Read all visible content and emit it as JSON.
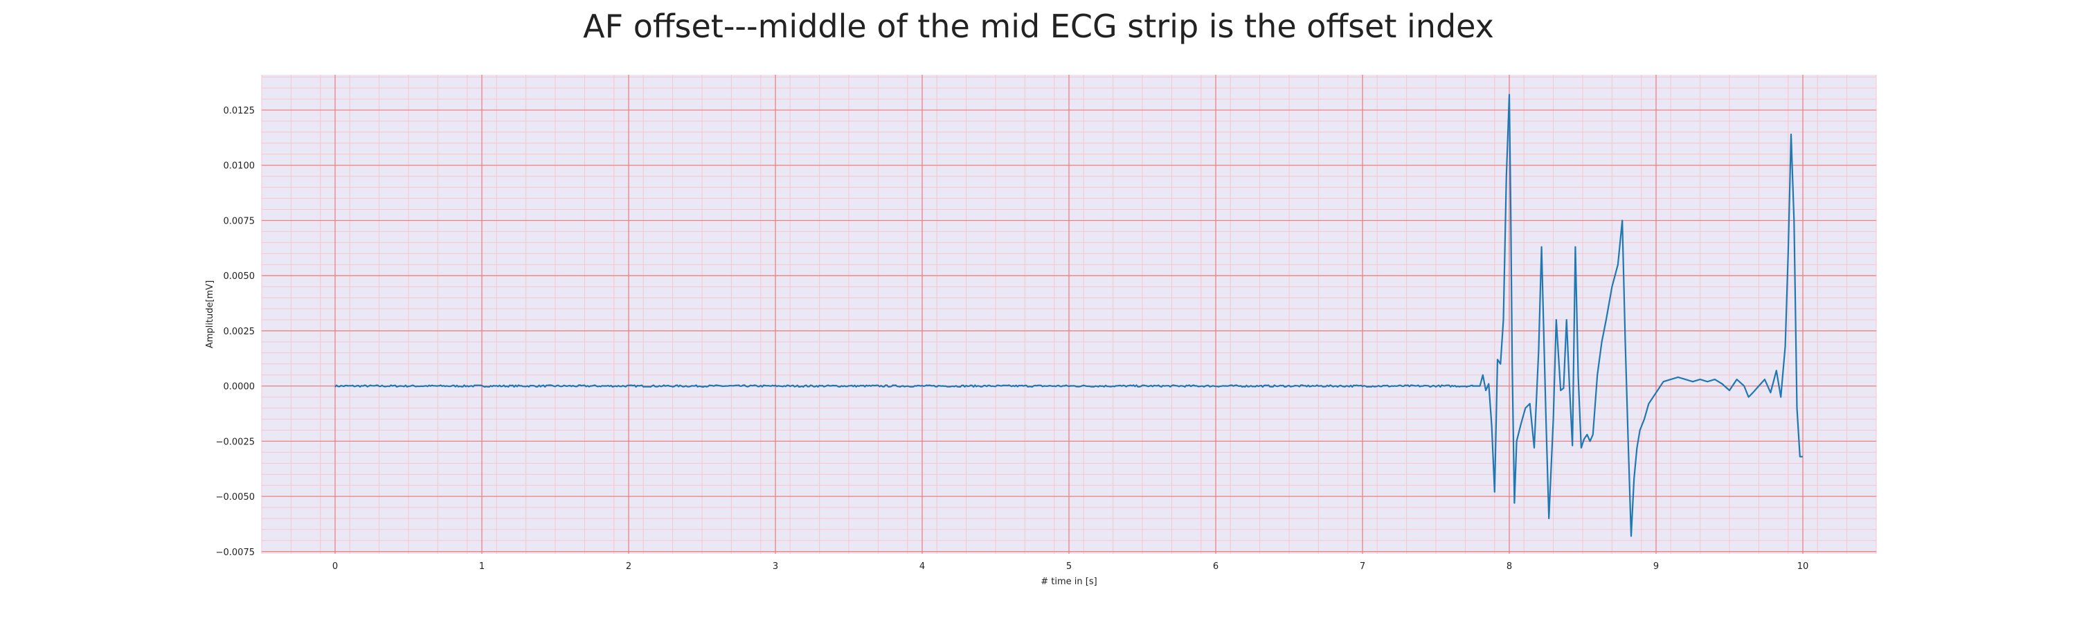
{
  "chart_data": {
    "type": "line",
    "title": "AF offset---middle of the mid ECG strip is the offset index",
    "xlabel": "# time in [s]",
    "ylabel": "Amplitude[mV]",
    "xlim": [
      -0.5,
      10.5
    ],
    "ylim": [
      -0.0076,
      0.0141
    ],
    "xticks": [
      0,
      1,
      2,
      3,
      4,
      5,
      6,
      7,
      8,
      9,
      10
    ],
    "xtick_labels": [
      "0",
      "1",
      "2",
      "3",
      "4",
      "5",
      "6",
      "7",
      "8",
      "9",
      "10"
    ],
    "yticks": [
      -0.0075,
      -0.005,
      -0.0025,
      0.0,
      0.0025,
      0.005,
      0.0075,
      0.01,
      0.0125
    ],
    "ytick_labels": [
      "−0.0075",
      "−0.0050",
      "−0.0025",
      "0.0000",
      "0.0025",
      "0.0050",
      "0.0075",
      "0.0100",
      "0.0125"
    ],
    "grid": true,
    "minor_grid": true,
    "colors": {
      "background": "#eae8f5",
      "major_grid": "#f08080",
      "minor_grid": "#f5c6cf",
      "line": "#1f77b4"
    },
    "series": [
      {
        "baseline": {
          "x_start": 0.0,
          "x_end": 7.75,
          "y": 0.0,
          "noise_amplitude": 4e-05
        },
        "x": [
          7.75,
          7.78,
          7.8,
          7.82,
          7.84,
          7.86,
          7.88,
          7.9,
          7.92,
          7.94,
          7.96,
          7.98,
          8.0,
          8.01,
          8.02,
          8.035,
          8.05,
          8.08,
          8.11,
          8.14,
          8.17,
          8.2,
          8.22,
          8.25,
          8.27,
          8.3,
          8.32,
          8.35,
          8.37,
          8.39,
          8.41,
          8.43,
          8.45,
          8.47,
          8.49,
          8.51,
          8.53,
          8.55,
          8.57,
          8.6,
          8.63,
          8.66,
          8.7,
          8.74,
          8.77,
          8.79,
          8.81,
          8.83,
          8.85,
          8.87,
          8.89,
          8.92,
          8.95,
          9.0,
          9.05,
          9.1,
          9.15,
          9.2,
          9.25,
          9.3,
          9.35,
          9.4,
          9.45,
          9.5,
          9.55,
          9.6,
          9.63,
          9.66,
          9.7,
          9.74,
          9.78,
          9.82,
          9.85,
          9.88,
          9.9,
          9.92,
          9.94,
          9.96,
          9.98,
          10.0
        ],
        "y": [
          0.0,
          0.0,
          0.0,
          0.0005,
          -0.0002,
          0.0001,
          -0.0018,
          -0.0048,
          0.0012,
          0.001,
          0.003,
          0.0095,
          0.0132,
          0.008,
          0.001,
          -0.0053,
          -0.0025,
          -0.0017,
          -0.001,
          -0.0008,
          -0.0028,
          0.0016,
          0.0063,
          -0.0015,
          -0.006,
          -0.0015,
          0.003,
          -0.0002,
          -0.0001,
          0.003,
          0.0,
          -0.0027,
          0.0063,
          0.0004,
          -0.0028,
          -0.0024,
          -0.0022,
          -0.0025,
          -0.0022,
          0.0005,
          0.002,
          0.003,
          0.0045,
          0.0055,
          0.0075,
          0.002,
          -0.0025,
          -0.0068,
          -0.0042,
          -0.0028,
          -0.002,
          -0.0015,
          -0.0008,
          -0.0003,
          0.0002,
          0.0003,
          0.0004,
          0.0003,
          0.0002,
          0.0003,
          0.0002,
          0.0003,
          0.0001,
          -0.0002,
          0.0003,
          0.0,
          -0.0005,
          -0.0003,
          0.0,
          0.0003,
          -0.0003,
          0.0007,
          -0.0005,
          0.0018,
          0.006,
          0.0114,
          0.0075,
          -0.001,
          -0.0032,
          -0.0032
        ]
      }
    ]
  }
}
